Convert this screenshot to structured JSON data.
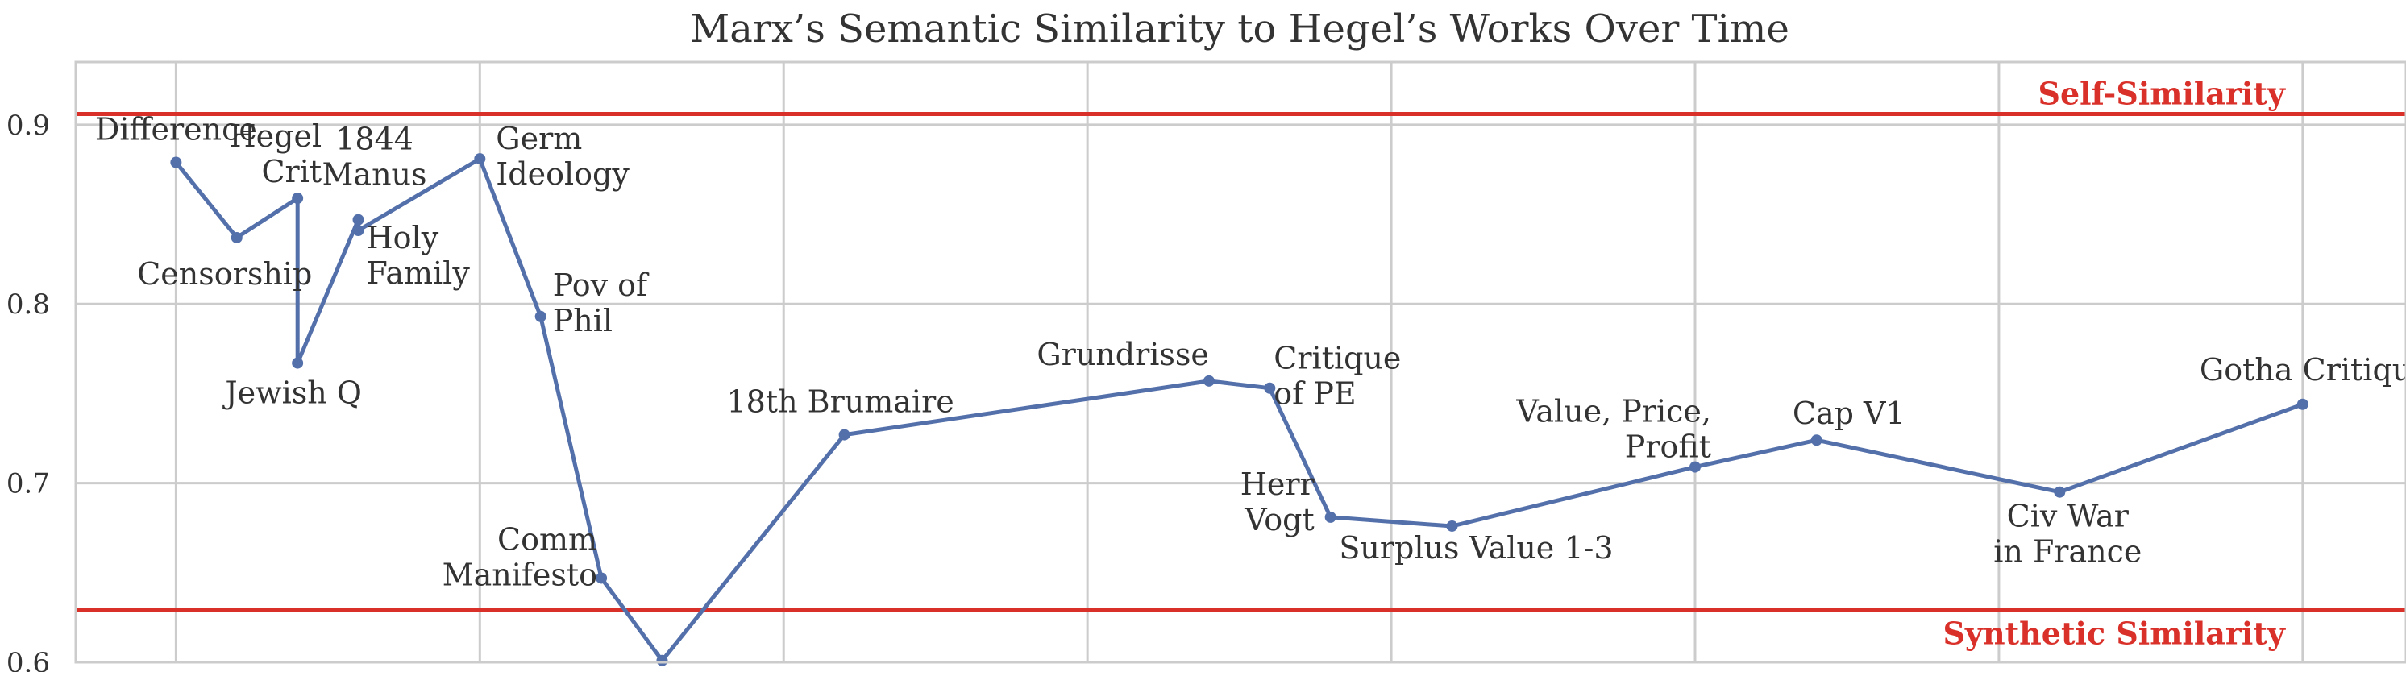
{
  "chart_data": {
    "type": "line",
    "title": "Marx’s Semantic Similarity to Hegel’s Works Over Time",
    "xlabel": "",
    "ylabel": "",
    "ylim": [
      0.6,
      0.935
    ],
    "xlim": [
      1838.35,
      1876.7
    ],
    "yticks": [
      "0.6",
      "0.7",
      "0.8",
      "0.9"
    ],
    "grid": true,
    "line_color": "#5470AB",
    "series": [
      {
        "points": [
          {
            "x": 1840.0,
            "y": 0.879,
            "label": [
              "Difference"
            ],
            "anchor": "middle",
            "dx": 0,
            "dy": -28
          },
          {
            "x": 1841.0,
            "y": 0.837,
            "label": [
              "Censorship"
            ],
            "anchor": "middle",
            "dx": -15,
            "dy": 58
          },
          {
            "x": 1842.0,
            "y": 0.859,
            "label": [
              "Hegel",
              "Crit"
            ],
            "anchor": "end",
            "dx": 30,
            "dy": -64
          },
          {
            "x": 1842.0,
            "y": 0.767,
            "label": [
              "Jewish Q"
            ],
            "anchor": "middle",
            "dx": -5,
            "dy": 50
          },
          {
            "x": 1843.0,
            "y": 0.847,
            "label": [
              "1844",
              "Manus"
            ],
            "anchor": "middle",
            "dx": 20,
            "dy": -87
          },
          {
            "x": 1843.0,
            "y": 0.841,
            "label": [
              "Holy",
              "Family"
            ],
            "anchor": "start",
            "dx": 10,
            "dy": 22
          },
          {
            "x": 1845.0,
            "y": 0.881,
            "label": [
              "Germ",
              "Ideology"
            ],
            "anchor": "start",
            "dx": 20,
            "dy": -12
          },
          {
            "x": 1846.0,
            "y": 0.793,
            "label": [
              "Pov of",
              "Phil"
            ],
            "anchor": "start",
            "dx": 15,
            "dy": -26
          },
          {
            "x": 1847.0,
            "y": 0.647,
            "label": [
              "Comm",
              "Manifesto"
            ],
            "anchor": "end",
            "dx": -5,
            "dy": -35
          },
          {
            "x": 1848.0,
            "y": 0.601,
            "label": [],
            "anchor": "middle",
            "dx": 0,
            "dy": 0
          },
          {
            "x": 1851.0,
            "y": 0.727,
            "label": [
              "18th Brumaire"
            ],
            "anchor": "middle",
            "dx": -5,
            "dy": -28
          },
          {
            "x": 1857.0,
            "y": 0.757,
            "label": [
              "Grundrisse"
            ],
            "anchor": "end",
            "dx": 0,
            "dy": -20
          },
          {
            "x": 1858.0,
            "y": 0.753,
            "label": [
              "Critique",
              "of PE"
            ],
            "anchor": "start",
            "dx": 5,
            "dy": -24
          },
          {
            "x": 1859.0,
            "y": 0.681,
            "label": [
              "Herr",
              "Vogt"
            ],
            "anchor": "end",
            "dx": -20,
            "dy": -28
          },
          {
            "x": 1861.0,
            "y": 0.676,
            "label": [
              "Surplus Value 1-3"
            ],
            "anchor": "middle",
            "dx": 30,
            "dy": 40
          },
          {
            "x": 1865.0,
            "y": 0.709,
            "label": [
              "Value, Price,",
              "Profit"
            ],
            "anchor": "end",
            "dx": 20,
            "dy": -56
          },
          {
            "x": 1867.0,
            "y": 0.724,
            "label": [
              "Cap V1"
            ],
            "anchor": "middle",
            "dx": 40,
            "dy": -20
          },
          {
            "x": 1871.0,
            "y": 0.695,
            "label": [
              "Civ War",
              "in France"
            ],
            "anchor": "middle",
            "dx": 10,
            "dy": 43
          },
          {
            "x": 1875.0,
            "y": 0.744,
            "label": [
              "Gotha Critique"
            ],
            "anchor": "middle",
            "dx": 15,
            "dy": -30
          }
        ]
      }
    ],
    "reference_lines": [
      {
        "y": 0.906,
        "label": "Self-Similarity",
        "color": "#D9302A",
        "label_position": "above-right"
      },
      {
        "y": 0.629,
        "label": "Synthetic Similarity",
        "color": "#D9302A",
        "label_position": "below-right"
      }
    ]
  }
}
